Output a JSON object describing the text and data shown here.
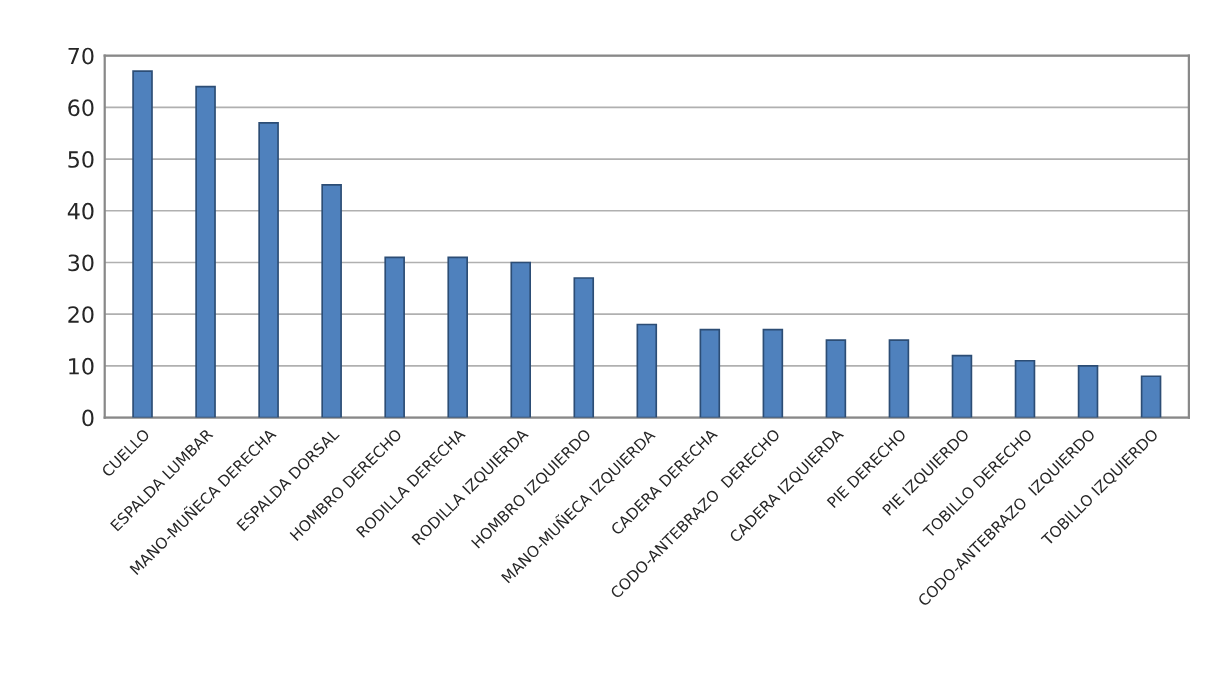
{
  "chart_data": {
    "type": "bar",
    "categories": [
      "CUELLO",
      "ESPALDA LUMBAR",
      "MANO-MUÑECA DERECHA",
      "ESPALDA DORSAL",
      "HOMBRO DERECHO",
      "RODILLA DERECHA",
      "RODILLA IZQUIERDA",
      "HOMBRO IZQUIERDO",
      "MANO-MUÑECA IZQUIERDA",
      "CADERA DERECHA",
      "CODO-ANTEBRAZO  DERECHO",
      "CADERA IZQUIERDA",
      "PIE DERECHO",
      "PIE IZQUIERDO",
      "TOBILLO DERECHO",
      "CODO-ANTEBRAZO  IZQUIERDO",
      "TOBILLO IZQUIERDO"
    ],
    "values": [
      67,
      64,
      57,
      45,
      31,
      31,
      30,
      27,
      18,
      17,
      17,
      15,
      15,
      12,
      11,
      10,
      8
    ],
    "color": "#4f81bd",
    "ylim": [
      0,
      70
    ],
    "yticks": [
      0,
      10,
      20,
      30,
      40,
      50,
      60,
      70
    ],
    "grid": "y"
  }
}
